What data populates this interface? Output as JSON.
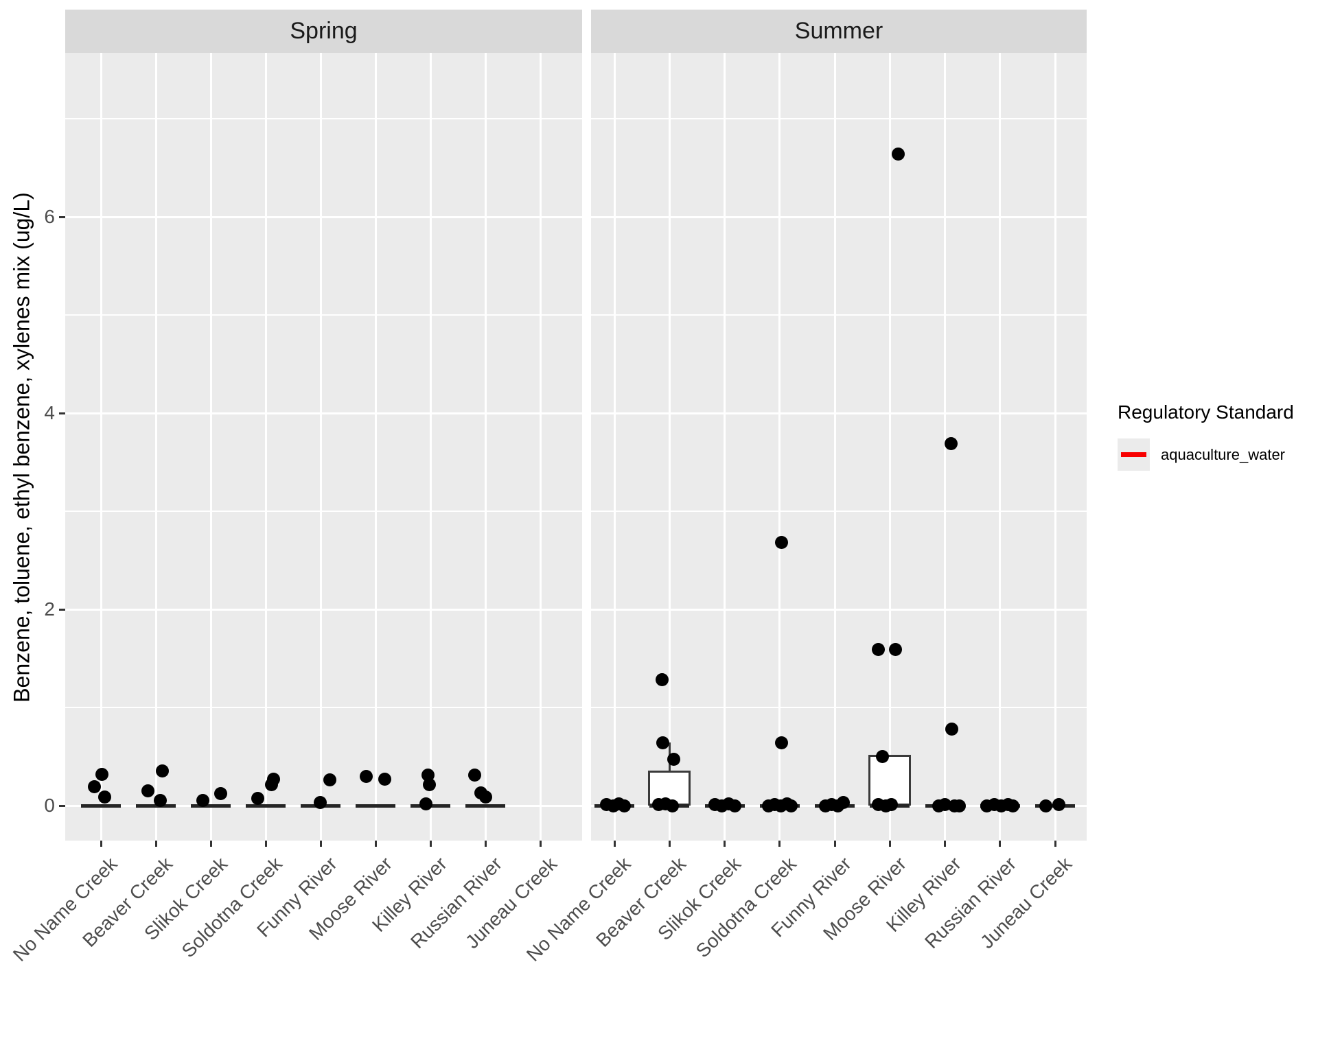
{
  "y_axis": {
    "title": "Benzene, toluene, ethyl benzene, xylenes mix (ug/L)",
    "tick_labels": [
      "0",
      "2",
      "4",
      "6"
    ],
    "breaks": [
      0,
      2,
      4,
      6
    ],
    "minor_breaks": [
      1,
      3,
      5,
      7
    ]
  },
  "x_axis": {
    "categories": [
      "No Name Creek",
      "Beaver Creek",
      "Slikok Creek",
      "Soldotna Creek",
      "Funny River",
      "Moose River",
      "Killey River",
      "Russian River",
      "Juneau Creek"
    ]
  },
  "legend": {
    "title": "Regulatory Standard",
    "entries": [
      {
        "label": "aquaculture_water",
        "line_color": "#F80000"
      }
    ]
  },
  "colors": {
    "panel_bg": "#EBEBEB",
    "strip_bg": "#D9D9D9",
    "grid": "#FFFFFF",
    "point": "#000000",
    "box_border": "#3A3A3A",
    "box_fill": "#FFFFFF",
    "zero_line": "#252525",
    "tick_text": "#4D4D4D"
  },
  "chart_data": {
    "type": "boxplot",
    "subtype": "boxplot-with-jittered-points, faceted by season",
    "ylabel": "Benzene, toluene, ethyl benzene, xylenes mix (ug/L)",
    "ylim_shown": [
      0,
      7.6
    ],
    "grid": "on",
    "legend_position": "right",
    "facets": [
      {
        "title": "Spring",
        "streams": [
          {
            "name": "No Name Creek",
            "zero_line": true,
            "median": 0,
            "points": [
              [
                1,
                0.32
              ],
              [
                -10,
                0.19
              ],
              [
                5,
                0.09
              ]
            ]
          },
          {
            "name": "Beaver Creek",
            "zero_line": true,
            "median": 0,
            "points": [
              [
                9,
                0.35
              ],
              [
                -12,
                0.15
              ],
              [
                6,
                0.05
              ]
            ]
          },
          {
            "name": "Slikok Creek",
            "zero_line": true,
            "median": 0,
            "points": [
              [
                -12,
                0.05
              ],
              [
                14,
                0.12
              ]
            ]
          },
          {
            "name": "Soldotna Creek",
            "zero_line": true,
            "median": 0,
            "points": [
              [
                -12,
                0.07
              ],
              [
                8,
                0.21
              ],
              [
                11,
                0.27
              ]
            ]
          },
          {
            "name": "Funny River",
            "zero_line": true,
            "median": 0,
            "points": [
              [
                -1,
                0.03
              ],
              [
                13,
                0.26
              ]
            ]
          },
          {
            "name": "Moose River",
            "zero_line": true,
            "median": 0,
            "points": [
              [
                -14,
                0.3
              ],
              [
                13,
                0.27
              ]
            ]
          },
          {
            "name": "Killey River",
            "zero_line": true,
            "median": 0,
            "points": [
              [
                -4,
                0.31
              ],
              [
                -2,
                0.21
              ],
              [
                -7,
                0.02
              ]
            ]
          },
          {
            "name": "Russian River",
            "zero_line": true,
            "median": 0,
            "points": [
              [
                -16,
                0.31
              ],
              [
                -7,
                0.13
              ],
              [
                0,
                0.09
              ]
            ]
          },
          {
            "name": "Juneau Creek",
            "zero_line": false,
            "median": null,
            "points": []
          }
        ]
      },
      {
        "title": "Summer",
        "streams": [
          {
            "name": "No Name Creek",
            "zero_line": true,
            "median": 0,
            "points": [
              [
                -12,
                0.01
              ],
              [
                -2,
                0
              ],
              [
                6,
                0.02
              ],
              [
                14,
                0
              ]
            ]
          },
          {
            "name": "Beaver Creek",
            "zero_line": true,
            "median": 0,
            "box": {
              "q1": 0,
              "q3": 0.36,
              "median": 0,
              "whisker_high": 0.64
            },
            "points": [
              [
                -11,
                1.28
              ],
              [
                -10,
                0.64
              ],
              [
                6,
                0.47
              ],
              [
                -16,
                0.01
              ],
              [
                -6,
                0.02
              ],
              [
                4,
                0
              ]
            ]
          },
          {
            "name": "Slikok Creek",
            "zero_line": true,
            "median": 0,
            "points": [
              [
                -14,
                0.01
              ],
              [
                -4,
                0
              ],
              [
                6,
                0.02
              ],
              [
                15,
                0
              ]
            ]
          },
          {
            "name": "Soldotna Creek",
            "zero_line": true,
            "median": 0,
            "points": [
              [
                3,
                2.68
              ],
              [
                3,
                0.64
              ],
              [
                -16,
                0
              ],
              [
                -7,
                0.01
              ],
              [
                2,
                0
              ],
              [
                11,
                0.02
              ],
              [
                17,
                0
              ]
            ]
          },
          {
            "name": "Funny River",
            "zero_line": true,
            "median": 0,
            "points": [
              [
                -14,
                0
              ],
              [
                -5,
                0.01
              ],
              [
                4,
                0
              ],
              [
                12,
                0.03
              ]
            ]
          },
          {
            "name": "Moose River",
            "zero_line": true,
            "median": 0,
            "box": {
              "q1": 0,
              "q3": 0.52,
              "median": 0
            },
            "points": [
              [
                12,
                6.64
              ],
              [
                -17,
                1.59
              ],
              [
                8,
                1.59
              ],
              [
                -11,
                0.5
              ],
              [
                -17,
                0.01
              ],
              [
                -6,
                0
              ],
              [
                2,
                0.01
              ]
            ]
          },
          {
            "name": "Killey River",
            "zero_line": true,
            "median": 0,
            "points": [
              [
                9,
                3.69
              ],
              [
                10,
                0.78
              ],
              [
                -9,
                0
              ],
              [
                0,
                0.01
              ],
              [
                14,
                0
              ],
              [
                21,
                0
              ]
            ]
          },
          {
            "name": "Russian River",
            "zero_line": true,
            "median": 0,
            "points": [
              [
                -19,
                0
              ],
              [
                -8,
                0.01
              ],
              [
                2,
                0
              ],
              [
                12,
                0.01
              ],
              [
                19,
                0
              ]
            ]
          },
          {
            "name": "Juneau Creek",
            "zero_line": true,
            "median": 0,
            "points": [
              [
                -14,
                0
              ],
              [
                5,
                0.01
              ]
            ]
          }
        ]
      }
    ]
  }
}
